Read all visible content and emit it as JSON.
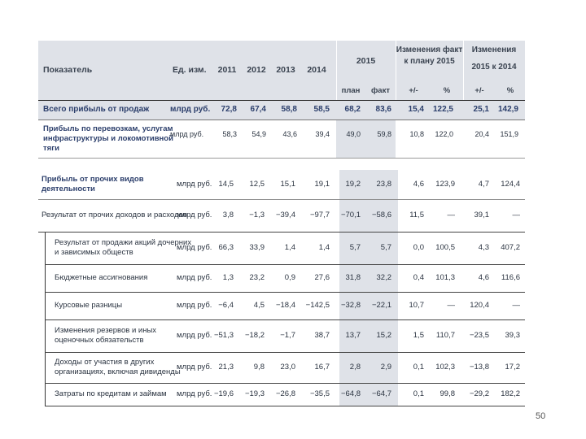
{
  "top": {
    "headers": {
      "indicator": "Показатель",
      "unit": "Ед. изм.",
      "y2011": "2011",
      "y2012": "2012",
      "y2013": "2013",
      "y2014": "2014",
      "y2015": "2015",
      "change_plan_line1": "Изменения факт",
      "change_plan_line2": "к плану 2015",
      "change_2014_line1": "Изменения",
      "change_2014_line2": "2015 к 2014",
      "plan": "план",
      "fact": "факт",
      "plusminus1": "+/-",
      "pct1": "%",
      "plusminus2": "+/-",
      "pct2": "%"
    },
    "rows": [
      {
        "label1": "Всего прибыль от продаж",
        "label2": "",
        "label3": "",
        "unit": "млрд руб.",
        "v2011": "72,8",
        "v2012": "67,4",
        "v2013": "58,8",
        "v2014": "58,5",
        "plan": "68,2",
        "fact": "83,6",
        "d1": "15,4",
        "p1": "122,5",
        "d2": "25,1",
        "p2": "142,9"
      },
      {
        "label1": "Прибыль по перевозкам, услугам",
        "label2": "инфраструктуры и локомотивной",
        "label3": "тяги",
        "unit": "млрд руб.",
        "v2011": "58,3",
        "v2012": "54,9",
        "v2013": "43,6",
        "v2014": "39,4",
        "plan": "49,0",
        "fact": "59,8",
        "d1": "10,8",
        "p1": "122,0",
        "d2": "20,4",
        "p2": "151,9"
      }
    ]
  },
  "bottom": {
    "rows": [
      {
        "label1": "Прибыль от прочих видов",
        "label2": "деятельности",
        "unit": "млрд руб.",
        "v2011": "14,5",
        "v2012": "12,5",
        "v2013": "15,1",
        "v2014": "19,1",
        "plan": "19,2",
        "fact": "23,8",
        "d1": "4,6",
        "p1": "123,9",
        "d2": "4,7",
        "p2": "124,4"
      },
      {
        "label1": "Результат от прочих доходов и расходов",
        "label2": "",
        "unit": "млрд руб.",
        "v2011": "3,8",
        "v2012": "−1,3",
        "v2013": "−39,4",
        "v2014": "−97,7",
        "plan": "−70,1",
        "fact": "−58,6",
        "d1": "11,5",
        "p1": "—",
        "d2": "39,1",
        "p2": "—"
      },
      {
        "label1": "Результат от продажи акций дочерних",
        "label2": "и зависимых обществ",
        "unit": "млрд руб.",
        "v2011": "66,3",
        "v2012": "33,9",
        "v2013": "1,4",
        "v2014": "1,4",
        "plan": "5,7",
        "fact": "5,7",
        "d1": "0,0",
        "p1": "100,5",
        "d2": "4,3",
        "p2": "407,2"
      },
      {
        "label1": "Бюджетные ассигнования",
        "label2": "",
        "unit": "млрд руб.",
        "v2011": "1,3",
        "v2012": "23,2",
        "v2013": "0,9",
        "v2014": "27,6",
        "plan": "31,8",
        "fact": "32,2",
        "d1": "0,4",
        "p1": "101,3",
        "d2": "4,6",
        "p2": "116,6"
      },
      {
        "label1": "Курсовые разницы",
        "label2": "",
        "unit": "млрд руб.",
        "v2011": "−6,4",
        "v2012": "4,5",
        "v2013": "−18,4",
        "v2014": "−142,5",
        "plan": "−32,8",
        "fact": "−22,1",
        "d1": "10,7",
        "p1": "—",
        "d2": "120,4",
        "p2": "—"
      },
      {
        "label1": "Изменения резервов и иных",
        "label2": "оценочных обязательств",
        "unit": "млрд руб.",
        "v2011": "−51,3",
        "v2012": "−18,2",
        "v2013": "−1,7",
        "v2014": "38,7",
        "plan": "13,7",
        "fact": "15,2",
        "d1": "1,5",
        "p1": "110,7",
        "d2": "−23,5",
        "p2": "39,3"
      },
      {
        "label1": "Доходы от участия в других",
        "label2": "организациях, включая дивиденды",
        "unit": "млрд руб.",
        "v2011": "21,3",
        "v2012": "9,8",
        "v2013": "23,0",
        "v2014": "16,7",
        "plan": "2,8",
        "fact": "2,9",
        "d1": "0,1",
        "p1": "102,3",
        "d2": "−13,8",
        "p2": "17,2"
      },
      {
        "label1": "Затраты по кредитам и займам",
        "label2": "",
        "unit": "млрд руб.",
        "v2011": "−19,6",
        "v2012": "−19,3",
        "v2013": "−26,8",
        "v2014": "−35,5",
        "plan": "−64,8",
        "fact": "−64,7",
        "d1": "0,1",
        "p1": "99,8",
        "d2": "−29,2",
        "p2": "182,2"
      }
    ]
  },
  "page_number": "50"
}
